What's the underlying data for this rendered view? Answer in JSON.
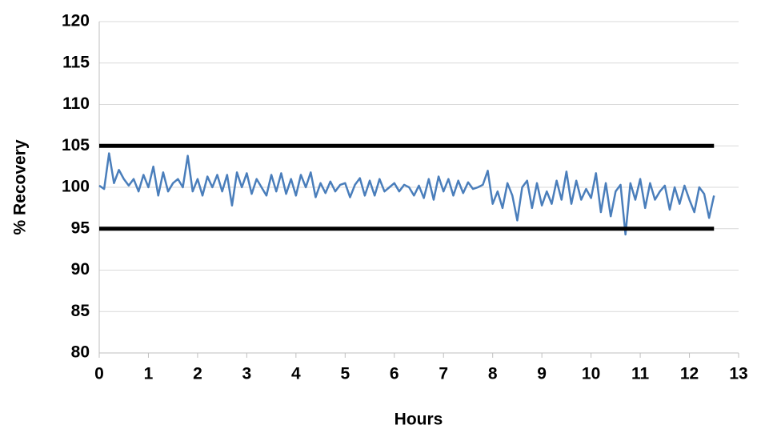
{
  "chart_data": {
    "type": "line",
    "xlabel": "Hours",
    "ylabel": "% Recovery",
    "xlim": [
      0,
      13
    ],
    "xticks": [
      0,
      1,
      2,
      3,
      4,
      5,
      6,
      7,
      8,
      9,
      10,
      11,
      12,
      13
    ],
    "ylim": [
      80,
      120
    ],
    "yticks": [
      80,
      85,
      90,
      95,
      100,
      105,
      110,
      115,
      120
    ],
    "grid": true,
    "series": [
      {
        "color": "#4a7ebb",
        "width": 2.5,
        "x": [
          0,
          0.1,
          0.2,
          0.3,
          0.4,
          0.5,
          0.6,
          0.7,
          0.8,
          0.9,
          1,
          1.1,
          1.2,
          1.3,
          1.4,
          1.5,
          1.6,
          1.7,
          1.8,
          1.9,
          2,
          2.1,
          2.2,
          2.3,
          2.4,
          2.5,
          2.6,
          2.7,
          2.8,
          2.9,
          3,
          3.1,
          3.2,
          3.3,
          3.4,
          3.5,
          3.6,
          3.7,
          3.8,
          3.9,
          4,
          4.1,
          4.2,
          4.3,
          4.4,
          4.5,
          4.6,
          4.7,
          4.8,
          4.9,
          5,
          5.1,
          5.2,
          5.3,
          5.4,
          5.5,
          5.6,
          5.7,
          5.8,
          5.9,
          6,
          6.1,
          6.2,
          6.3,
          6.4,
          6.5,
          6.6,
          6.7,
          6.8,
          6.9,
          7,
          7.1,
          7.2,
          7.3,
          7.4,
          7.5,
          7.6,
          7.7,
          7.8,
          7.9,
          8,
          8.1,
          8.2,
          8.3,
          8.4,
          8.5,
          8.6,
          8.7,
          8.8,
          8.9,
          9,
          9.1,
          9.2,
          9.3,
          9.4,
          9.5,
          9.6,
          9.7,
          9.8,
          9.9,
          10,
          10.1,
          10.2,
          10.3,
          10.4,
          10.5,
          10.6,
          10.7,
          10.8,
          10.9,
          11,
          11.1,
          11.2,
          11.3,
          11.4,
          11.5,
          11.6,
          11.7,
          11.8,
          11.9,
          12,
          12.1,
          12.2,
          12.3,
          12.4,
          12.5
        ],
        "values": [
          100.2,
          99.8,
          104.1,
          100.5,
          102.1,
          101,
          100.2,
          101,
          99.5,
          101.5,
          100,
          102.5,
          99,
          101.8,
          99.5,
          100.5,
          101,
          100,
          103.8,
          99.5,
          101,
          99,
          101.3,
          100,
          101.5,
          99.5,
          101.5,
          97.8,
          101.8,
          100,
          101.7,
          99.2,
          101,
          100,
          99,
          101.5,
          99.5,
          101.7,
          99.2,
          101,
          99,
          101.5,
          100,
          101.8,
          98.8,
          100.5,
          99.3,
          100.7,
          99.5,
          100.3,
          100.5,
          98.8,
          100.3,
          101.1,
          99,
          100.8,
          99,
          101,
          99.5,
          100,
          100.5,
          99.5,
          100.3,
          100,
          99,
          100.2,
          98.7,
          101,
          98.5,
          101.3,
          99.5,
          101,
          99,
          100.8,
          99.3,
          100.6,
          99.8,
          100,
          100.3,
          102,
          98,
          99.5,
          97.5,
          100.5,
          99,
          96,
          100,
          100.8,
          97.5,
          100.5,
          97.8,
          99.5,
          98,
          100.8,
          98.5,
          101.9,
          98,
          100.8,
          98.5,
          99.8,
          98.7,
          101.7,
          97,
          100.5,
          96.5,
          99.5,
          100.3,
          94.3,
          100.5,
          98.5,
          101,
          97.5,
          100.5,
          98.5,
          99.5,
          100.2,
          97.3,
          100,
          98,
          100.2,
          98.5,
          97,
          100,
          99.2,
          96.3,
          99
        ]
      },
      {
        "color": "#000000",
        "width": 5,
        "x": [
          0,
          12.5
        ],
        "values": [
          105,
          105
        ]
      },
      {
        "color": "#000000",
        "width": 5,
        "x": [
          0,
          12.5
        ],
        "values": [
          95,
          95
        ]
      }
    ]
  }
}
